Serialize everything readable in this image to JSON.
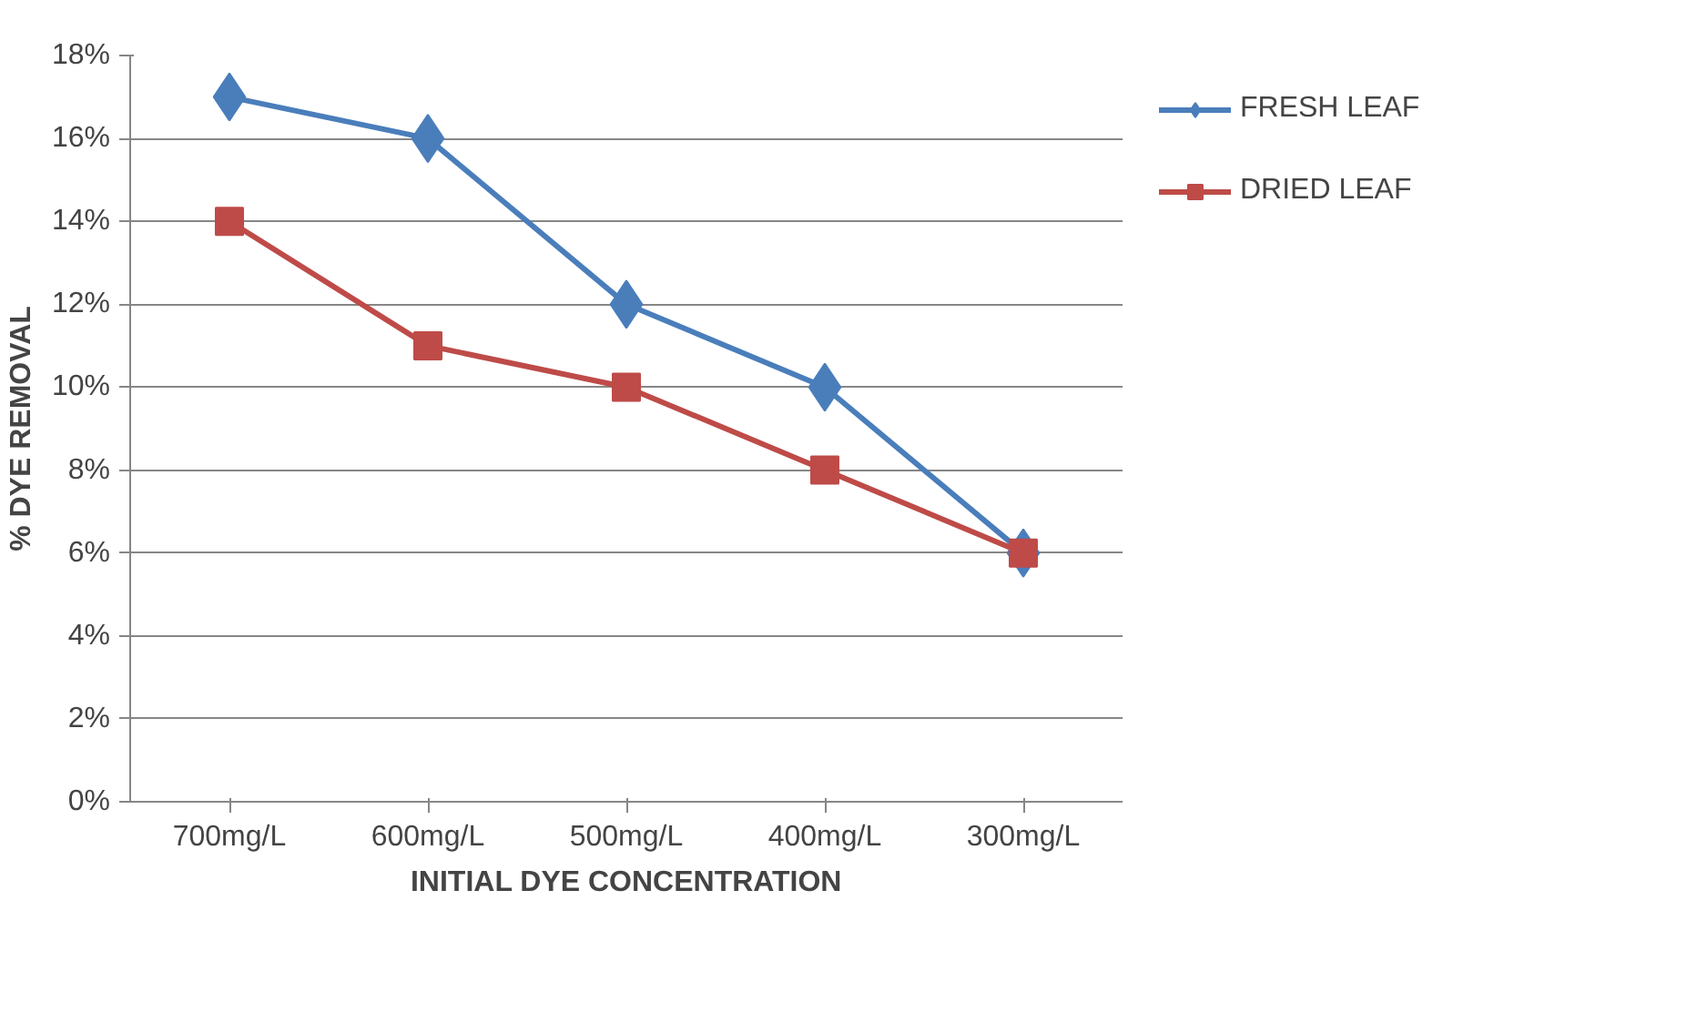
{
  "chart_data": {
    "type": "line",
    "xlabel": "INITIAL DYE CONCENTRATION",
    "ylabel": "% DYE REMOVAL",
    "categories": [
      "700mg/L",
      "600mg/L",
      "500mg/L",
      "400mg/L",
      "300mg/L"
    ],
    "series": [
      {
        "name": "FRESH LEAF",
        "color": "#4a7ebb",
        "marker": "diamond",
        "values": [
          17,
          16,
          12,
          10,
          6
        ]
      },
      {
        "name": "DRIED LEAF",
        "color": "#be4b48",
        "marker": "square",
        "values": [
          14,
          11,
          10,
          8,
          6
        ]
      }
    ],
    "ylim": [
      0,
      18
    ],
    "yticks": [
      {
        "value": 0,
        "label": "0%"
      },
      {
        "value": 2,
        "label": "2%"
      },
      {
        "value": 4,
        "label": "4%"
      },
      {
        "value": 6,
        "label": "6%"
      },
      {
        "value": 8,
        "label": "8%"
      },
      {
        "value": 10,
        "label": "10%"
      },
      {
        "value": 12,
        "label": "12%"
      },
      {
        "value": 14,
        "label": "14%"
      },
      {
        "value": 16,
        "label": "16%"
      },
      {
        "value": 18,
        "label": "18%"
      }
    ],
    "grid": "y",
    "legend": "right",
    "line_style": "solid"
  }
}
